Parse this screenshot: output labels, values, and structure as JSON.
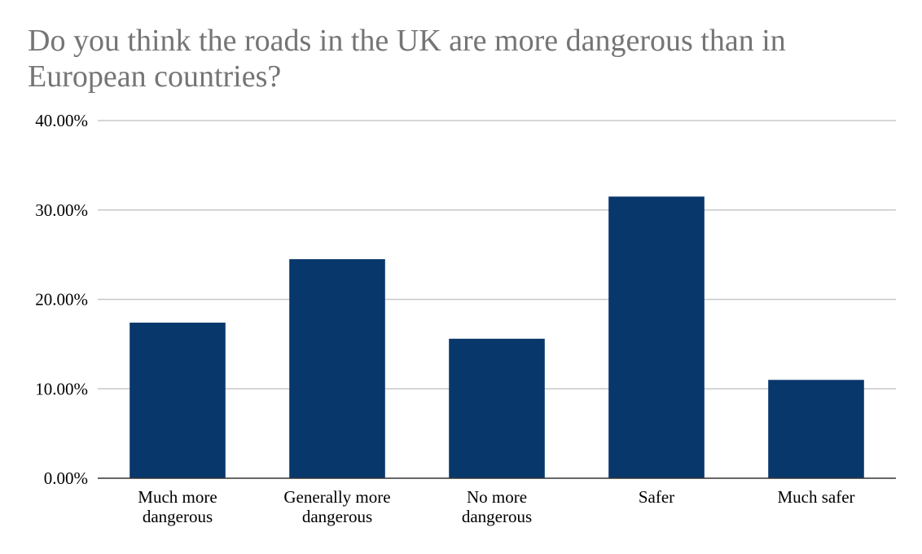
{
  "chart_data": {
    "type": "bar",
    "title": "Do you think the roads in the UK are more dangerous than in European countries?",
    "xlabel": "",
    "ylabel": "",
    "categories": [
      [
        "Much more",
        "dangerous"
      ],
      [
        "Generally more",
        "dangerous"
      ],
      [
        "No more",
        "dangerous"
      ],
      [
        "Safer"
      ],
      [
        "Much safer"
      ]
    ],
    "values": [
      17.4,
      24.5,
      15.6,
      31.5,
      11.0
    ],
    "ylim": [
      0,
      40
    ],
    "yticks": [
      0,
      10,
      20,
      30,
      40
    ],
    "ytick_labels": [
      "0.00%",
      "10.00%",
      "20.00%",
      "30.00%",
      "40.00%"
    ],
    "grid": true,
    "bar_color": "#08376b",
    "grid_color": "#c8c8c8",
    "axis_color": "#333333",
    "title_color": "#757575"
  }
}
